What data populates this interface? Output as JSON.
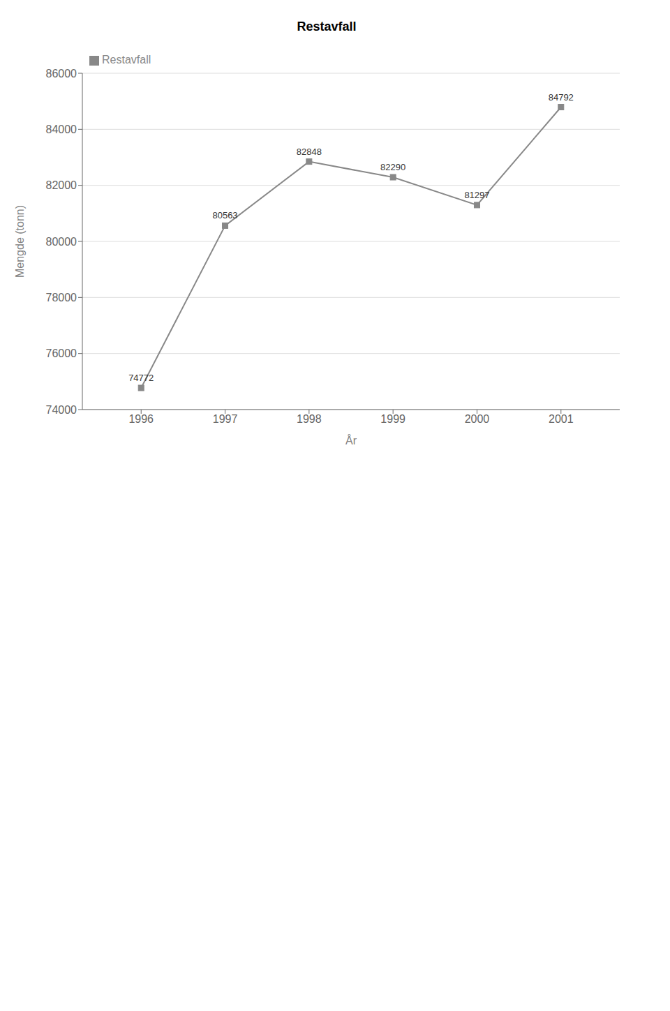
{
  "chart_data": {
    "type": "line",
    "title": "Restavfall",
    "x": [
      1996,
      1997,
      1998,
      1999,
      2000,
      2001
    ],
    "xlim": [
      1995.3,
      2001.7
    ],
    "xticks": [
      1996,
      1997,
      1998,
      1999,
      2000,
      2001
    ],
    "xlabel": "År",
    "ylabel": "Mengde  (tonn)",
    "ylim": [
      74000,
      86000
    ],
    "yticks": [
      74000,
      76000,
      78000,
      80000,
      82000,
      84000,
      86000
    ],
    "series": [
      {
        "name": "Restavfall",
        "color": "#888888",
        "marker": "square",
        "values": [
          74772,
          80563,
          82848,
          82290,
          81297,
          84792
        ]
      }
    ],
    "grid": true,
    "legend": "upper left",
    "data_labels": true
  }
}
